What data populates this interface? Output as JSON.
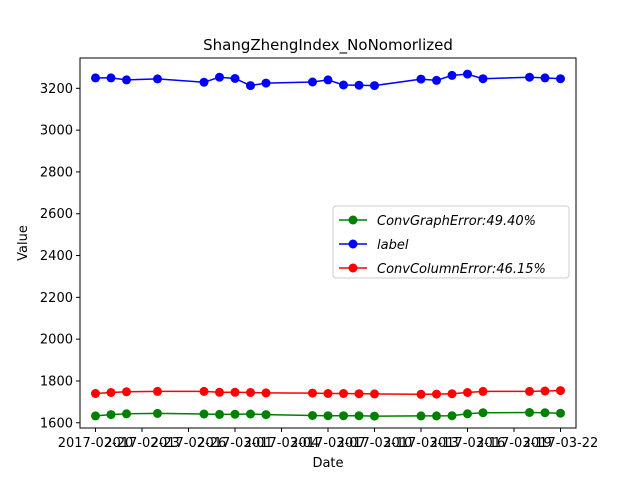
{
  "chart_data": {
    "type": "line",
    "title": "ShangZhengIndex_NoNomorlized",
    "xlabel": "Date",
    "ylabel": "Value",
    "ylim": [
      1575,
      3345
    ],
    "xlim": [
      "2017-02-19",
      "2017-03-23"
    ],
    "yticks": [
      1600,
      1800,
      2000,
      2200,
      2400,
      2600,
      2800,
      3000,
      3200
    ],
    "xticks": [
      "2017-02-20",
      "2017-02-23",
      "2017-02-26",
      "2017-03-01",
      "2017-03-04",
      "2017-03-07",
      "2017-03-10",
      "2017-03-13",
      "2017-03-16",
      "2017-03-19",
      "2017-03-22"
    ],
    "xtick_labels": [
      "2017-02-20",
      "2017-02-23",
      "2017-02-26",
      "2017-03-01",
      "2017-03-04",
      "2017-03-07",
      "2017-03-10",
      "2017-03-13",
      "2017-03-16",
      "2017-03-19",
      "2017-03-22"
    ],
    "x": [
      "2017-02-20",
      "2017-02-21",
      "2017-02-22",
      "2017-02-24",
      "2017-02-27",
      "2017-02-28",
      "2017-03-01",
      "2017-03-02",
      "2017-03-03",
      "2017-03-06",
      "2017-03-07",
      "2017-03-08",
      "2017-03-09",
      "2017-03-10",
      "2017-03-13",
      "2017-03-14",
      "2017-03-15",
      "2017-03-16",
      "2017-03-17",
      "2017-03-20",
      "2017-03-21",
      "2017-03-22"
    ],
    "legend": {
      "position": "right"
    },
    "grid": false,
    "series": [
      {
        "name": "ConvGraphError",
        "legend_label": "$ConvGraphError: 49.40\\%$",
        "legend_display": "ConvGraphError:49.40%",
        "color": "#008000",
        "values": [
          1633,
          1639,
          1643,
          1645,
          1642,
          1640,
          1641,
          1642,
          1639,
          1635,
          1634,
          1634,
          1634,
          1632,
          1633,
          1633,
          1634,
          1643,
          1648,
          1649,
          1648,
          1646
        ]
      },
      {
        "name": "label",
        "legend_label": "$label$",
        "legend_display": "label",
        "color": "#0000ff",
        "values": [
          3250,
          3250,
          3240,
          3245,
          3229,
          3253,
          3247,
          3213,
          3225,
          3230,
          3240,
          3216,
          3215,
          3213,
          3244,
          3238,
          3262,
          3268,
          3246,
          3253,
          3250,
          3246
        ]
      },
      {
        "name": "ConvColumnError",
        "legend_label": "$ConvColumnError: 46.15\\%$",
        "legend_display": "ConvColumnError:46.15%",
        "color": "#ff0000",
        "values": [
          1740,
          1745,
          1748,
          1750,
          1750,
          1746,
          1746,
          1745,
          1743,
          1742,
          1740,
          1740,
          1739,
          1738,
          1736,
          1737,
          1739,
          1745,
          1750,
          1750,
          1752,
          1754
        ]
      }
    ]
  }
}
